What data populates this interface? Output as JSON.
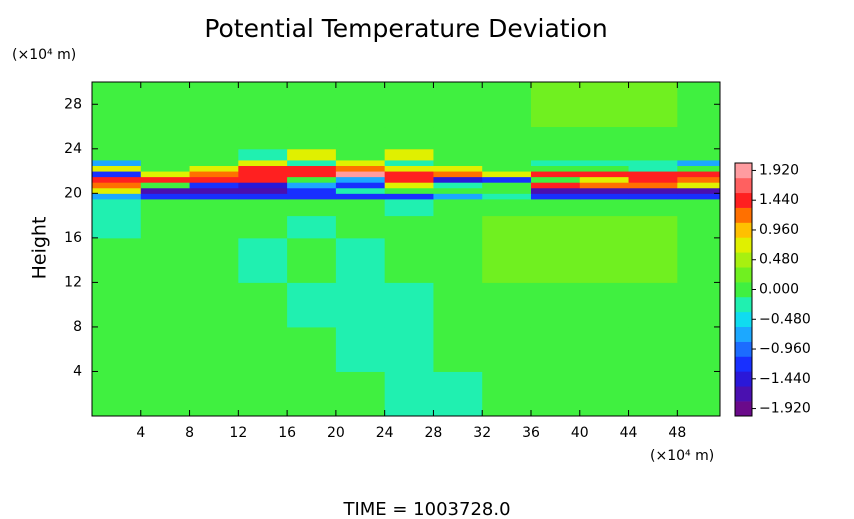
{
  "chart_data": {
    "type": "heatmap",
    "title": "Potential Temperature Deviation",
    "y_label": "Height",
    "y_unit_label": "(×10⁴ m)",
    "x_unit_label": "(×10⁴ m)",
    "footer": "TIME  =  1003728.0",
    "xlim": [
      0,
      51.5
    ],
    "ylim": [
      0,
      30
    ],
    "xticks": [
      4,
      8,
      12,
      16,
      20,
      24,
      28,
      32,
      36,
      40,
      44,
      48
    ],
    "yticks": [
      4,
      8,
      12,
      16,
      20,
      24,
      28
    ],
    "x_edges": [
      0,
      4,
      8,
      12,
      16,
      20,
      24,
      28,
      32,
      36,
      40,
      44,
      48,
      51.5
    ],
    "y_edges": [
      0,
      4,
      8,
      12,
      16,
      18,
      19.5,
      20,
      20.5,
      21,
      21.5,
      22,
      22.5,
      23,
      24,
      26,
      30
    ],
    "z": [
      [
        0.1,
        0.1,
        0.1,
        0.1,
        0.1,
        0.1,
        -0.2,
        -0.2,
        0.1,
        0.1,
        0.1,
        0.1,
        0.1
      ],
      [
        0.1,
        0.1,
        0.1,
        0.1,
        0.1,
        -0.2,
        -0.2,
        0.1,
        0.1,
        0.1,
        0.1,
        0.1,
        0.1
      ],
      [
        0.1,
        0.1,
        0.1,
        0.1,
        -0.2,
        -0.2,
        -0.2,
        0.1,
        0.1,
        0.1,
        0.1,
        0.1,
        0.1
      ],
      [
        0.1,
        0.1,
        0.1,
        -0.2,
        0.1,
        -0.2,
        0.1,
        0.1,
        0.3,
        0.3,
        0.3,
        0.3,
        0.1
      ],
      [
        -0.2,
        0.1,
        0.1,
        0.1,
        -0.2,
        0.1,
        0.1,
        0.1,
        0.3,
        0.3,
        0.3,
        0.3,
        0.1
      ],
      [
        -0.2,
        0.1,
        0.1,
        0.1,
        0.1,
        0.1,
        -0.2,
        0.1,
        0.1,
        0.1,
        0.1,
        0.1,
        0.1
      ],
      [
        -0.6,
        -1.2,
        -1.2,
        -1.2,
        -1.2,
        -1.2,
        -1.2,
        -0.6,
        -0.3,
        -1.2,
        -1.2,
        -1.2,
        -1.2
      ],
      [
        0.6,
        -1.7,
        -1.7,
        -1.7,
        -1.2,
        -0.3,
        0.1,
        0.1,
        0.1,
        -1.7,
        -1.7,
        -1.7,
        -1.7
      ],
      [
        1.2,
        0.1,
        -1.2,
        -1.5,
        -0.6,
        -1.2,
        0.6,
        -0.3,
        0.1,
        1.5,
        1.2,
        1.2,
        0.6
      ],
      [
        1.5,
        1.5,
        1.5,
        1.5,
        0.1,
        -0.6,
        1.5,
        -1.5,
        -1.2,
        0.1,
        0.6,
        1.5,
        1.2
      ],
      [
        -1.2,
        0.6,
        1.2,
        1.5,
        1.5,
        1.8,
        1.5,
        1.2,
        0.6,
        1.5,
        1.5,
        1.5,
        1.5
      ],
      [
        0.6,
        0.1,
        0.6,
        1.5,
        1.5,
        1.2,
        0.6,
        0.6,
        0.1,
        0.1,
        0.1,
        -0.3,
        0.1
      ],
      [
        -0.6,
        0.1,
        0.1,
        0.6,
        -0.3,
        0.6,
        -0.3,
        0.1,
        0.1,
        -0.3,
        -0.3,
        -0.3,
        -0.6
      ],
      [
        0.1,
        0.1,
        0.1,
        -0.3,
        0.6,
        0.1,
        0.6,
        0.1,
        0.1,
        0.1,
        0.1,
        0.1,
        0.1
      ],
      [
        0.1,
        0.1,
        0.1,
        0.1,
        0.1,
        0.1,
        0.1,
        0.1,
        0.1,
        0.1,
        0.1,
        0.1,
        0.1
      ],
      [
        0.1,
        0.1,
        0.1,
        0.1,
        0.1,
        0.1,
        0.1,
        0.1,
        0.1,
        0.3,
        0.3,
        0.3,
        0.1
      ]
    ],
    "clim": [
      -2.04,
      2.04
    ],
    "colormap": [
      "#6a0a8a",
      "#4a10b0",
      "#2a18d8",
      "#1830ff",
      "#1c6cff",
      "#1ca8ff",
      "#10dcf0",
      "#20f0b0",
      "#40f040",
      "#70f020",
      "#a8f010",
      "#e0f000",
      "#ffc000",
      "#ff7000",
      "#ff2020",
      "#ff6060",
      "#ff9ca0"
    ],
    "cticks": [
      {
        "value": 1.92,
        "label": "1.920"
      },
      {
        "value": 1.44,
        "label": "1.440"
      },
      {
        "value": 0.96,
        "label": "0.960"
      },
      {
        "value": 0.48,
        "label": "0.480"
      },
      {
        "value": 0,
        "label": "0.000"
      },
      {
        "value": -0.48,
        "label": "−0.480"
      },
      {
        "value": -0.96,
        "label": "−0.960"
      },
      {
        "value": -1.44,
        "label": "−1.440"
      },
      {
        "value": -1.92,
        "label": "−1.920"
      }
    ]
  }
}
